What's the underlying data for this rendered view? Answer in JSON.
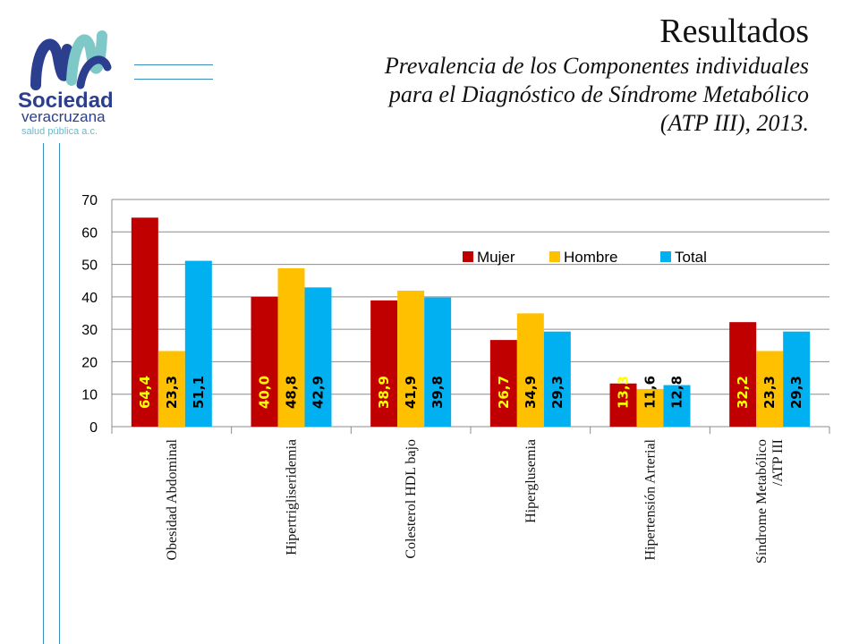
{
  "logo": {
    "name": "Sociedad",
    "line2": "veracruzana",
    "line3": "salud pública a.c.",
    "icon": "sv-logo-mark"
  },
  "header": {
    "title": "Resultados",
    "subtitle_lines": [
      "Prevalencia de los Componentes individuales",
      "para el Diagnóstico de Síndrome Metabólico",
      "(ATP III), 2013."
    ]
  },
  "colors": {
    "Mujer": "#c00000",
    "Hombre": "#ffc000",
    "Total": "#00b0f0",
    "label_light": "#ffff00",
    "label_dark": "#000000",
    "accent_line": "#3a8fbf"
  },
  "chart_data": {
    "type": "bar",
    "title": "",
    "xlabel": "",
    "ylabel": "",
    "ylim": [
      0,
      70
    ],
    "yticks": [
      0,
      10,
      20,
      30,
      40,
      50,
      60,
      70
    ],
    "grid": true,
    "legend_position": "top-right",
    "categories": [
      [
        "Obesidad Abdominal"
      ],
      [
        "Hipertrigliseridemia"
      ],
      [
        "Colesterol HDL bajo"
      ],
      [
        "Hiperglusemia"
      ],
      [
        "Hipertensión Arterial"
      ],
      [
        "Síndrome Metabólico",
        "/ATP III"
      ]
    ],
    "series": [
      {
        "name": "Mujer",
        "values": [
          64.4,
          40.0,
          38.9,
          26.7,
          13.3,
          32.2
        ],
        "labels": [
          "64,4",
          "40,0",
          "38,9",
          "26,7",
          "13,3",
          "32,2"
        ]
      },
      {
        "name": "Hombre",
        "values": [
          23.3,
          48.8,
          41.9,
          34.9,
          11.6,
          23.3
        ],
        "labels": [
          "23,3",
          "48,8",
          "41,9",
          "34,9",
          "11,6",
          "23,3"
        ]
      },
      {
        "name": "Total",
        "values": [
          51.1,
          42.9,
          39.8,
          29.3,
          12.8,
          29.3
        ],
        "labels": [
          "51,1",
          "42,9",
          "39,8",
          "29,3",
          "12,8",
          "29,3"
        ]
      }
    ]
  }
}
